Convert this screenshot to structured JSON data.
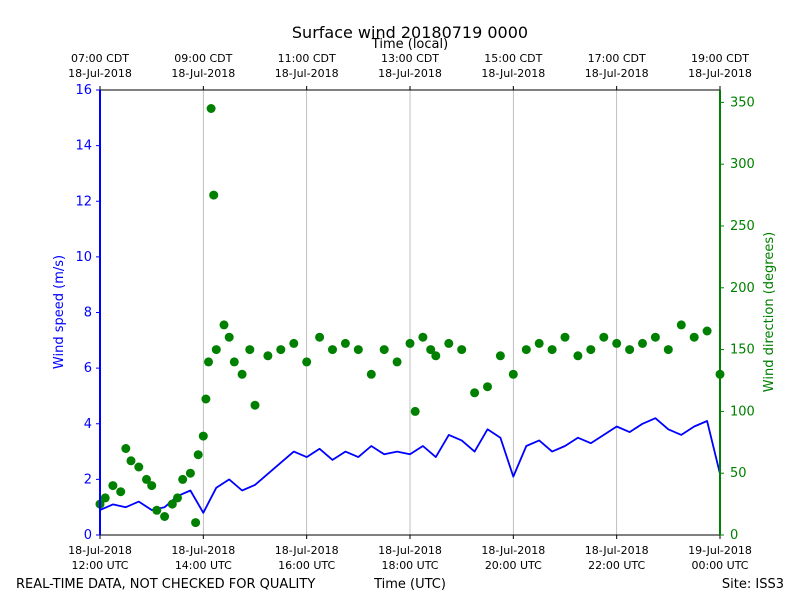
{
  "chart_data": {
    "type": "line+scatter",
    "title": "Surface wind 20180719 0000",
    "top_axis_label": "Time (local)",
    "top_ticks": [
      {
        "line1": "07:00 CDT",
        "line2": "18-Jul-2018"
      },
      {
        "line1": "09:00 CDT",
        "line2": "18-Jul-2018"
      },
      {
        "line1": "11:00 CDT",
        "line2": "18-Jul-2018"
      },
      {
        "line1": "13:00 CDT",
        "line2": "18-Jul-2018"
      },
      {
        "line1": "15:00 CDT",
        "line2": "18-Jul-2018"
      },
      {
        "line1": "17:00 CDT",
        "line2": "18-Jul-2018"
      },
      {
        "line1": "19:00 CDT",
        "line2": "18-Jul-2018"
      }
    ],
    "bottom_ticks": [
      {
        "line1": "18-Jul-2018",
        "line2": "12:00 UTC"
      },
      {
        "line1": "18-Jul-2018",
        "line2": "14:00 UTC"
      },
      {
        "line1": "18-Jul-2018",
        "line2": "16:00 UTC"
      },
      {
        "line1": "18-Jul-2018",
        "line2": "18:00 UTC"
      },
      {
        "line1": "18-Jul-2018",
        "line2": "20:00 UTC"
      },
      {
        "line1": "18-Jul-2018",
        "line2": "22:00 UTC"
      },
      {
        "line1": "19-Jul-2018",
        "line2": "00:00 UTC"
      }
    ],
    "x_range_hours_utc": [
      12,
      24
    ],
    "xlabel": "Time (UTC)",
    "y_left": {
      "label": "Wind speed (m/s)",
      "range": [
        0,
        16
      ],
      "ticks": [
        0,
        2,
        4,
        6,
        8,
        10,
        12,
        14,
        16
      ],
      "color": "#0000ff"
    },
    "y_right": {
      "label": "Wind direction (degrees)",
      "range": [
        0,
        360
      ],
      "ticks": [
        0,
        50,
        100,
        150,
        200,
        250,
        300,
        350
      ],
      "color": "#008000"
    },
    "grid": "vertical at major x ticks",
    "series": [
      {
        "name": "Wind speed",
        "axis": "left",
        "style": "line",
        "color": "#0000ff",
        "x_hours_utc": [
          12.0,
          12.25,
          12.5,
          12.75,
          13.0,
          13.25,
          13.5,
          13.75,
          14.0,
          14.25,
          14.5,
          14.75,
          15.0,
          15.25,
          15.5,
          15.75,
          16.0,
          16.25,
          16.5,
          16.75,
          17.0,
          17.25,
          17.5,
          17.75,
          18.0,
          18.25,
          18.5,
          18.75,
          19.0,
          19.25,
          19.5,
          19.75,
          20.0,
          20.25,
          20.5,
          20.75,
          21.0,
          21.25,
          21.5,
          21.75,
          22.0,
          22.25,
          22.5,
          22.75,
          23.0,
          23.25,
          23.5,
          23.75,
          24.0
        ],
        "values": [
          0.9,
          1.1,
          1.0,
          1.2,
          0.9,
          1.0,
          1.4,
          1.6,
          0.8,
          1.7,
          2.0,
          1.6,
          1.8,
          2.2,
          2.6,
          3.0,
          2.8,
          3.1,
          2.7,
          3.0,
          2.8,
          3.2,
          2.9,
          3.0,
          2.9,
          3.2,
          2.8,
          3.6,
          3.4,
          3.0,
          3.8,
          3.5,
          2.1,
          3.2,
          3.4,
          3.0,
          3.2,
          3.5,
          3.3,
          3.6,
          3.9,
          3.7,
          4.0,
          4.2,
          3.8,
          3.6,
          3.9,
          4.1,
          2.2
        ]
      },
      {
        "name": "Wind direction",
        "axis": "right",
        "style": "points",
        "color": "#008000",
        "x_hours_utc": [
          12.0,
          12.1,
          12.25,
          12.4,
          12.5,
          12.6,
          12.75,
          12.9,
          13.0,
          13.1,
          13.25,
          13.4,
          13.5,
          13.6,
          13.75,
          13.85,
          13.9,
          14.0,
          14.05,
          14.1,
          14.15,
          14.2,
          14.25,
          14.4,
          14.5,
          14.6,
          14.75,
          14.9,
          15.0,
          15.25,
          15.5,
          15.75,
          16.0,
          16.25,
          16.5,
          16.75,
          17.0,
          17.25,
          17.5,
          17.75,
          18.0,
          18.1,
          18.25,
          18.4,
          18.5,
          18.75,
          19.0,
          19.25,
          19.5,
          19.75,
          20.0,
          20.25,
          20.5,
          20.75,
          21.0,
          21.25,
          21.5,
          21.75,
          22.0,
          22.25,
          22.5,
          22.75,
          23.0,
          23.25,
          23.5,
          23.75,
          24.0
        ],
        "values": [
          25,
          30,
          40,
          35,
          70,
          60,
          55,
          45,
          40,
          20,
          15,
          25,
          30,
          45,
          50,
          10,
          65,
          80,
          110,
          140,
          345,
          275,
          150,
          170,
          160,
          140,
          130,
          150,
          105,
          145,
          150,
          155,
          140,
          160,
          150,
          155,
          150,
          130,
          150,
          140,
          155,
          100,
          160,
          150,
          145,
          155,
          150,
          115,
          120,
          145,
          130,
          150,
          155,
          150,
          160,
          145,
          150,
          160,
          155,
          150,
          155,
          160,
          150,
          170,
          160,
          165,
          130
        ]
      }
    ],
    "annotations": {
      "bottom_left": "REAL-TIME DATA, NOT CHECKED FOR QUALITY",
      "bottom_right": "Site: ISS3"
    }
  }
}
